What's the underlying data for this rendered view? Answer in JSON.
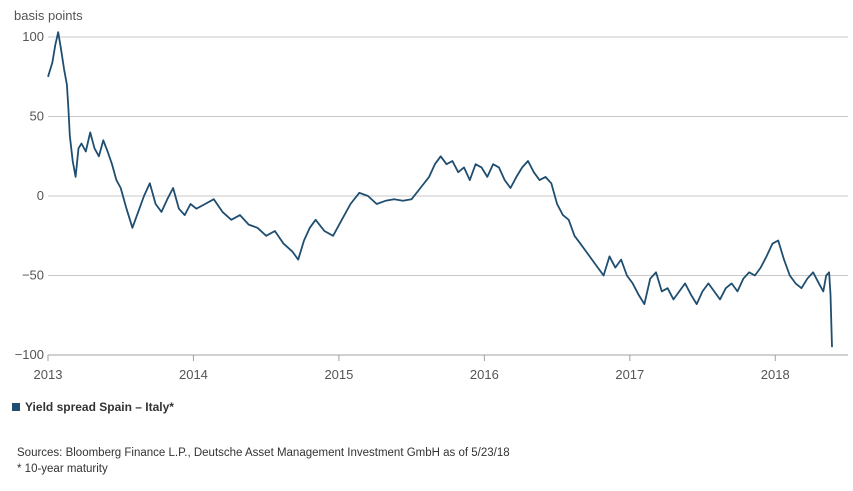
{
  "chart_data": {
    "type": "line",
    "title": "",
    "ylabel": "basis points",
    "xlabel": "",
    "ylim": [
      -100,
      100
    ],
    "yticks": [
      "100",
      "50",
      "0",
      "−50",
      "−100"
    ],
    "ytick_values": [
      100,
      50,
      0,
      -50,
      -100
    ],
    "xlim": [
      2013.0,
      2018.5
    ],
    "xticks": [
      "2013",
      "2014",
      "2015",
      "2016",
      "2017",
      "2018"
    ],
    "xtick_values": [
      2013,
      2014,
      2015,
      2016,
      2017,
      2018
    ],
    "grid": true,
    "series": [
      {
        "name": "Yield spread Spain – Italy*",
        "color": "#1f4e70",
        "x": [
          2013.0,
          2013.03,
          2013.05,
          2013.07,
          2013.09,
          2013.11,
          2013.13,
          2013.14,
          2013.15,
          2013.17,
          2013.19,
          2013.21,
          2013.23,
          2013.26,
          2013.29,
          2013.32,
          2013.35,
          2013.38,
          2013.41,
          2013.44,
          2013.47,
          2013.5,
          2013.54,
          2013.58,
          2013.62,
          2013.66,
          2013.7,
          2013.74,
          2013.78,
          2013.82,
          2013.86,
          2013.9,
          2013.94,
          2013.98,
          2014.02,
          2014.08,
          2014.14,
          2014.2,
          2014.26,
          2014.32,
          2014.38,
          2014.44,
          2014.5,
          2014.56,
          2014.62,
          2014.68,
          2014.72,
          2014.76,
          2014.8,
          2014.84,
          2014.9,
          2014.96,
          2015.02,
          2015.08,
          2015.14,
          2015.2,
          2015.26,
          2015.32,
          2015.38,
          2015.44,
          2015.5,
          2015.56,
          2015.62,
          2015.66,
          2015.7,
          2015.74,
          2015.78,
          2015.82,
          2015.86,
          2015.9,
          2015.94,
          2015.98,
          2016.02,
          2016.06,
          2016.1,
          2016.14,
          2016.18,
          2016.22,
          2016.26,
          2016.3,
          2016.34,
          2016.38,
          2016.42,
          2016.46,
          2016.5,
          2016.54,
          2016.58,
          2016.62,
          2016.66,
          2016.7,
          2016.74,
          2016.78,
          2016.82,
          2016.86,
          2016.9,
          2016.94,
          2016.98,
          2017.02,
          2017.06,
          2017.1,
          2017.14,
          2017.18,
          2017.22,
          2017.26,
          2017.3,
          2017.34,
          2017.38,
          2017.42,
          2017.46,
          2017.5,
          2017.54,
          2017.58,
          2017.62,
          2017.66,
          2017.7,
          2017.74,
          2017.78,
          2017.82,
          2017.86,
          2017.9,
          2017.94,
          2017.98,
          2018.02,
          2018.06,
          2018.1,
          2018.14,
          2018.18,
          2018.22,
          2018.26,
          2018.3,
          2018.33,
          2018.35,
          2018.37,
          2018.38,
          2018.39
        ],
        "values": [
          75,
          84,
          95,
          103,
          92,
          80,
          70,
          55,
          38,
          22,
          12,
          30,
          33,
          28,
          40,
          30,
          25,
          35,
          28,
          20,
          10,
          5,
          -8,
          -20,
          -10,
          0,
          8,
          -5,
          -10,
          -2,
          5,
          -8,
          -12,
          -5,
          -8,
          -5,
          -2,
          -10,
          -15,
          -12,
          -18,
          -20,
          -25,
          -22,
          -30,
          -35,
          -40,
          -28,
          -20,
          -15,
          -22,
          -25,
          -15,
          -5,
          2,
          0,
          -5,
          -3,
          -2,
          -3,
          -2,
          5,
          12,
          20,
          25,
          20,
          22,
          15,
          18,
          10,
          20,
          18,
          12,
          20,
          18,
          10,
          5,
          12,
          18,
          22,
          15,
          10,
          12,
          8,
          -5,
          -12,
          -15,
          -25,
          -30,
          -35,
          -40,
          -45,
          -50,
          -38,
          -45,
          -40,
          -50,
          -55,
          -62,
          -68,
          -52,
          -48,
          -60,
          -58,
          -65,
          -60,
          -55,
          -62,
          -68,
          -60,
          -55,
          -60,
          -65,
          -58,
          -55,
          -60,
          -52,
          -48,
          -50,
          -45,
          -38,
          -30,
          -28,
          -40,
          -50,
          -55,
          -58,
          -52,
          -48,
          -55,
          -60,
          -50,
          -48,
          -62,
          -95
        ]
      }
    ]
  },
  "legend": {
    "label": "Yield spread Spain – Italy*"
  },
  "footer": {
    "sources": "Sources: Bloomberg Finance L.P., Deutsche Asset Management Investment GmbH as of 5/23/18",
    "note": "* 10-year maturity"
  }
}
